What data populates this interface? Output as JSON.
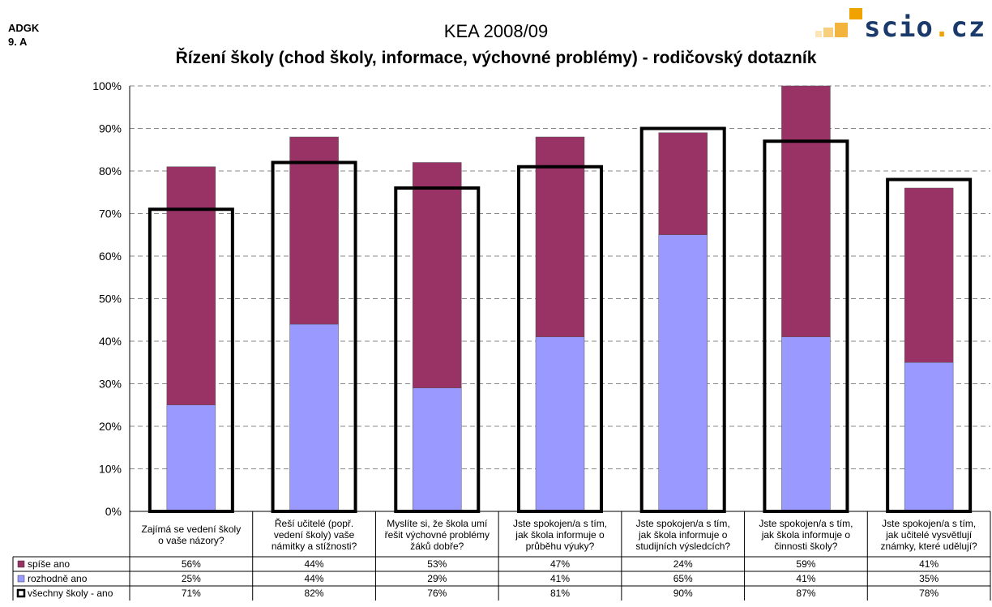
{
  "header": {
    "corner_line1": "ADGK",
    "corner_line2": "9. A",
    "logo_text_main": "scio",
    "logo_text_dot": ".",
    "logo_text_tld": "cz"
  },
  "chart_data": {
    "type": "bar",
    "title": "KEA 2008/09",
    "subtitle": "Řízení školy (chod školy, informace, výchovné problémy) - rodičovský dotazník",
    "ylim": [
      0,
      100
    ],
    "yticks": [
      "0%",
      "10%",
      "20%",
      "30%",
      "40%",
      "50%",
      "60%",
      "70%",
      "80%",
      "90%",
      "100%"
    ],
    "grid": true,
    "categories": [
      [
        "Zajímá se vedení školy",
        "o vaše názory?"
      ],
      [
        "Řeší učitelé (popř.",
        "vedení školy) vaše",
        "námitky a stížnosti?"
      ],
      [
        "Myslíte si, že škola umí",
        "řešit výchovné problémy",
        "žáků dobře?"
      ],
      [
        "Jste spokojen/a s tím,",
        "jak škola informuje o",
        "průběhu výuky?"
      ],
      [
        "Jste spokojen/a s tím,",
        "jak škola informuje o",
        "studijních výsledcích?"
      ],
      [
        "Jste spokojen/a s tím,",
        "jak škola informuje o",
        "činnosti školy?"
      ],
      [
        "Jste spokojen/a s tím,",
        "jak učitelé vysvětlují",
        "známky, které udělují?"
      ]
    ],
    "series": [
      {
        "name": "spíše ano",
        "color": "#993366",
        "values": [
          56,
          44,
          53,
          47,
          24,
          59,
          41
        ],
        "labels": [
          "56%",
          "44%",
          "53%",
          "47%",
          "24%",
          "59%",
          "41%"
        ]
      },
      {
        "name": "rozhodně ano",
        "color": "#9999ff",
        "values": [
          25,
          44,
          29,
          41,
          65,
          41,
          35
        ],
        "labels": [
          "25%",
          "44%",
          "29%",
          "41%",
          "65%",
          "41%",
          "35%"
        ]
      },
      {
        "name": "všechny školy - ano",
        "color": "#000000",
        "values": [
          71,
          82,
          76,
          81,
          90,
          87,
          78
        ],
        "labels": [
          "71%",
          "82%",
          "76%",
          "81%",
          "90%",
          "87%",
          "78%"
        ]
      }
    ]
  }
}
